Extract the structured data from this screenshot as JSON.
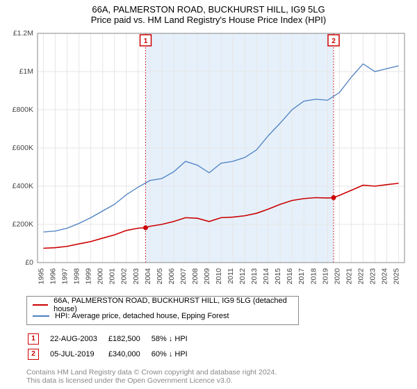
{
  "title_main": "66A, PALMERSTON ROAD, BUCKHURST HILL, IG9 5LG",
  "title_sub": "Price paid vs. HM Land Registry's House Price Index (HPI)",
  "chart": {
    "type": "line",
    "background_color": "#ffffff",
    "grid_color": "#e6e6e6",
    "axis_color": "#888888",
    "shade_color": "#cfe4f7",
    "shade_opacity": 0.55,
    "x_years": [
      1995,
      1996,
      1997,
      1998,
      1999,
      2000,
      2001,
      2002,
      2003,
      2004,
      2005,
      2006,
      2007,
      2008,
      2009,
      2010,
      2011,
      2012,
      2013,
      2014,
      2015,
      2016,
      2017,
      2018,
      2019,
      2020,
      2021,
      2022,
      2023,
      2024,
      2025
    ],
    "xlim": [
      1994.5,
      2025.5
    ],
    "ylim": [
      0,
      1200000
    ],
    "ytick_step": 200000,
    "ytick_labels": [
      "£0",
      "£200K",
      "£400K",
      "£600K",
      "£800K",
      "£1M",
      "£1.2M"
    ],
    "shade_x": [
      2003.63,
      2019.51
    ],
    "series": [
      {
        "key": "property",
        "label": "66A, PALMERSTON ROAD, BUCKHURST HILL, IG9 5LG (detached house)",
        "color": "#cc0000",
        "width": 1.6,
        "points": [
          [
            1995,
            75000
          ],
          [
            1996,
            78000
          ],
          [
            1997,
            85000
          ],
          [
            1998,
            98000
          ],
          [
            1999,
            110000
          ],
          [
            2000,
            128000
          ],
          [
            2001,
            145000
          ],
          [
            2002,
            168000
          ],
          [
            2003,
            180000
          ],
          [
            2003.63,
            182500
          ],
          [
            2004,
            190000
          ],
          [
            2005,
            200000
          ],
          [
            2006,
            215000
          ],
          [
            2007,
            235000
          ],
          [
            2008,
            232000
          ],
          [
            2009,
            215000
          ],
          [
            2010,
            235000
          ],
          [
            2011,
            238000
          ],
          [
            2012,
            245000
          ],
          [
            2013,
            258000
          ],
          [
            2014,
            280000
          ],
          [
            2015,
            305000
          ],
          [
            2016,
            325000
          ],
          [
            2017,
            335000
          ],
          [
            2018,
            340000
          ],
          [
            2019,
            338000
          ],
          [
            2019.51,
            340000
          ],
          [
            2020,
            352000
          ],
          [
            2021,
            378000
          ],
          [
            2022,
            405000
          ],
          [
            2023,
            400000
          ],
          [
            2024,
            408000
          ],
          [
            2025,
            415000
          ]
        ]
      },
      {
        "key": "hpi",
        "label": "HPI: Average price, detached house, Epping Forest",
        "color": "#4a7fc1",
        "width": 1.3,
        "points": [
          [
            1995,
            160000
          ],
          [
            1996,
            165000
          ],
          [
            1997,
            180000
          ],
          [
            1998,
            205000
          ],
          [
            1999,
            235000
          ],
          [
            2000,
            270000
          ],
          [
            2001,
            305000
          ],
          [
            2002,
            355000
          ],
          [
            2003,
            395000
          ],
          [
            2004,
            430000
          ],
          [
            2005,
            440000
          ],
          [
            2006,
            475000
          ],
          [
            2007,
            530000
          ],
          [
            2008,
            510000
          ],
          [
            2009,
            470000
          ],
          [
            2010,
            520000
          ],
          [
            2011,
            530000
          ],
          [
            2012,
            550000
          ],
          [
            2013,
            590000
          ],
          [
            2014,
            665000
          ],
          [
            2015,
            730000
          ],
          [
            2016,
            800000
          ],
          [
            2017,
            845000
          ],
          [
            2018,
            855000
          ],
          [
            2019,
            850000
          ],
          [
            2020,
            890000
          ],
          [
            2021,
            970000
          ],
          [
            2022,
            1040000
          ],
          [
            2023,
            1000000
          ],
          [
            2024,
            1015000
          ],
          [
            2025,
            1030000
          ]
        ]
      }
    ],
    "markers": [
      {
        "num": "1",
        "x": 2003.63,
        "y": 182500,
        "label_y": 1180000
      },
      {
        "num": "2",
        "x": 2019.51,
        "y": 340000,
        "label_y": 1180000
      }
    ]
  },
  "legend": {
    "items": [
      {
        "color": "#cc0000",
        "label_key": "property"
      },
      {
        "color": "#4a7fc1",
        "label_key": "hpi"
      }
    ]
  },
  "sales": [
    {
      "num": "1",
      "date": "22-AUG-2003",
      "price": "£182,500",
      "diff": "58% ↓ HPI"
    },
    {
      "num": "2",
      "date": "05-JUL-2019",
      "price": "£340,000",
      "diff": "60% ↓ HPI"
    }
  ],
  "footer_line1": "Contains HM Land Registry data © Crown copyright and database right 2024.",
  "footer_line2": "This data is licensed under the Open Government Licence v3.0."
}
